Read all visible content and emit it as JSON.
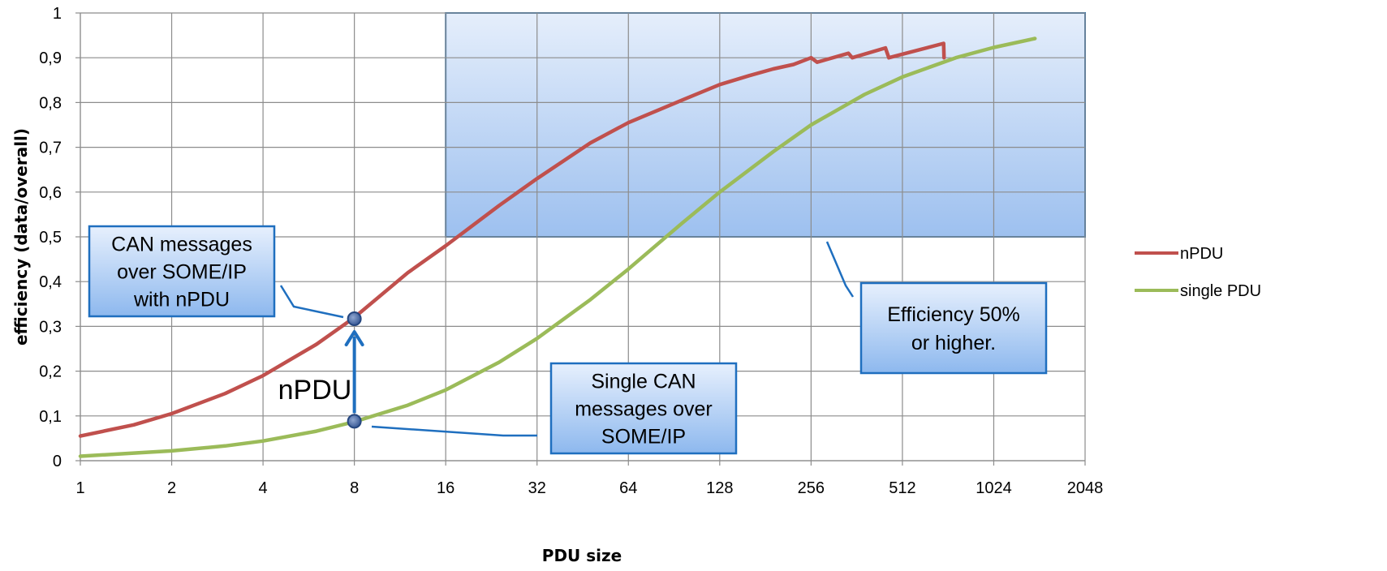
{
  "chart_data": {
    "type": "line",
    "xlabel": "PDU size",
    "ylabel": "efficiency (data/overall)",
    "x_scale": "log2",
    "xlim": [
      1,
      2048
    ],
    "ylim": [
      0,
      1
    ],
    "x_ticks": [
      "1",
      "2",
      "4",
      "8",
      "16",
      "32",
      "64",
      "128",
      "256",
      "512",
      "1024",
      "2048"
    ],
    "y_ticks": [
      "0",
      "0,1",
      "0,2",
      "0,3",
      "0,4",
      "0,5",
      "0,6",
      "0,7",
      "0,8",
      "0,9",
      "1"
    ],
    "grid": true,
    "legend_position": "right",
    "series": [
      {
        "name": "nPDU",
        "color": "#C0504D",
        "points": [
          [
            1,
            0.055
          ],
          [
            1.5,
            0.08
          ],
          [
            2,
            0.105
          ],
          [
            3,
            0.15
          ],
          [
            4,
            0.19
          ],
          [
            6,
            0.26
          ],
          [
            8,
            0.32
          ],
          [
            12,
            0.42
          ],
          [
            16,
            0.48
          ],
          [
            24,
            0.57
          ],
          [
            32,
            0.63
          ],
          [
            48,
            0.71
          ],
          [
            64,
            0.755
          ],
          [
            96,
            0.805
          ],
          [
            128,
            0.84
          ],
          [
            160,
            0.86
          ],
          [
            192,
            0.875
          ],
          [
            224,
            0.885
          ],
          [
            256,
            0.9
          ],
          [
            268,
            0.89
          ],
          [
            340,
            0.91
          ],
          [
            350,
            0.9
          ],
          [
            450,
            0.922
          ],
          [
            462,
            0.9
          ],
          [
            700,
            0.932
          ],
          [
            702,
            0.9
          ]
        ]
      },
      {
        "name": "single PDU",
        "color": "#9BBB59",
        "points": [
          [
            1,
            0.01
          ],
          [
            1.5,
            0.017
          ],
          [
            2,
            0.022
          ],
          [
            3,
            0.033
          ],
          [
            4,
            0.044
          ],
          [
            6,
            0.066
          ],
          [
            8,
            0.087
          ],
          [
            12,
            0.124
          ],
          [
            16,
            0.158
          ],
          [
            24,
            0.22
          ],
          [
            32,
            0.273
          ],
          [
            48,
            0.36
          ],
          [
            64,
            0.428
          ],
          [
            96,
            0.53
          ],
          [
            128,
            0.6
          ],
          [
            192,
            0.69
          ],
          [
            256,
            0.75
          ],
          [
            384,
            0.818
          ],
          [
            512,
            0.857
          ],
          [
            768,
            0.9
          ],
          [
            1024,
            0.923
          ],
          [
            1400,
            0.943
          ]
        ]
      }
    ],
    "region": {
      "x_from": 16,
      "x_to": 2048,
      "y_from": 0.5,
      "y_to": 1
    },
    "markers": [
      {
        "name": "nPDU point",
        "x": 8,
        "y": 0.317
      },
      {
        "name": "single PDU point",
        "x": 8,
        "y": 0.088
      }
    ],
    "annotations": {
      "npdu_arrow_label": "nPDU",
      "can_nPDU_box": [
        "CAN messages",
        "over SOME/IP",
        "with nPDU"
      ],
      "single_can_box": [
        "Single CAN",
        "messages over",
        "SOME/IP"
      ],
      "efficiency_box": [
        "Efficiency 50%",
        "or higher."
      ]
    }
  }
}
